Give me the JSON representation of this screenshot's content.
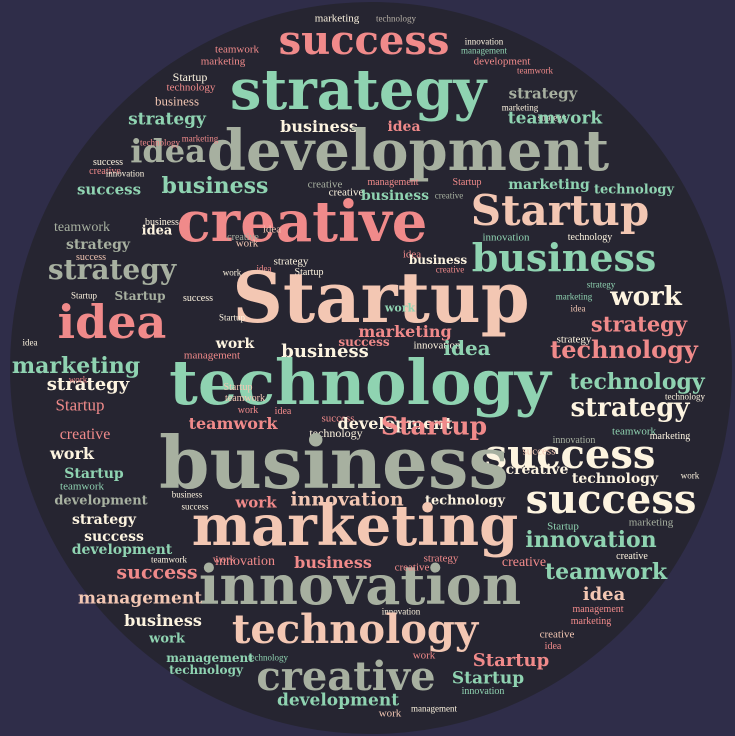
{
  "colors": {
    "background": "#2f2d49",
    "disc": "#262531",
    "salmon": "#f08a8a",
    "mint": "#8fd3b1",
    "peach": "#f3c7b3",
    "sage": "#a7b0a0",
    "cream": "#fdf4e0",
    "grey": "#b6b0a6"
  },
  "words": [
    "marketing",
    "technology",
    "success",
    "innovation",
    "management",
    "teamwork",
    "development",
    "marketing",
    "strategy",
    "teamwork",
    "Startup",
    "technology",
    "business",
    "strategy",
    "business",
    "idea",
    "marketing",
    "strategy",
    "teamwork",
    "idea",
    "development",
    "strategy",
    "marketing",
    "technology",
    "success",
    "creative",
    "innovation",
    "creative",
    "management",
    "Startup",
    "success",
    "business",
    "creative",
    "business",
    "creative",
    "marketing",
    "technology",
    "creative",
    "Startup",
    "teamwork",
    "idea",
    "innovation",
    "business",
    "strategy",
    "strategy",
    "success",
    "creative",
    "idea",
    "business",
    "technology",
    "work",
    "idea",
    "creative",
    "strategy",
    "work",
    "idea",
    "Startup",
    "business",
    "Startup",
    "success",
    "Startup",
    "Startup",
    "work",
    "idea",
    "marketing",
    "strategy",
    "idea",
    "marketing",
    "strategy",
    "idea",
    "Startup",
    "work",
    "technology",
    "technology",
    "business",
    "management",
    "success",
    "innovation",
    "idea",
    "strategy",
    "work",
    "marketing",
    "strategy",
    "technology",
    "work",
    "Startup",
    "teamwork",
    "strategy",
    "Startup",
    "technology",
    "work",
    "idea",
    "success",
    "technology",
    "development",
    "Startup",
    "teamwork",
    "creative",
    "innovation",
    "teamwork",
    "work",
    "success",
    "marketing",
    "success",
    "Startup",
    "technology",
    "work",
    "teamwork",
    "business",
    "creative",
    "success",
    "business",
    "work",
    "innovation",
    "technology",
    "development",
    "success",
    "marketing",
    "strategy",
    "marketing",
    "Startup",
    "innovation",
    "success",
    "creative",
    "work",
    "development",
    "innovation",
    "business",
    "strategy",
    "teamwork",
    "creative",
    "success",
    "innovation",
    "teamwork",
    "management",
    "creative",
    "idea",
    "innovation",
    "business",
    "management",
    "technology",
    "marketing",
    "work",
    "creative",
    "idea",
    "management",
    "technology",
    "work",
    "Startup",
    "technology",
    "creative",
    "Startup",
    "innovation",
    "development",
    "work",
    "management",
    "strategy",
    "teamwork",
    "development",
    "technology"
  ]
}
